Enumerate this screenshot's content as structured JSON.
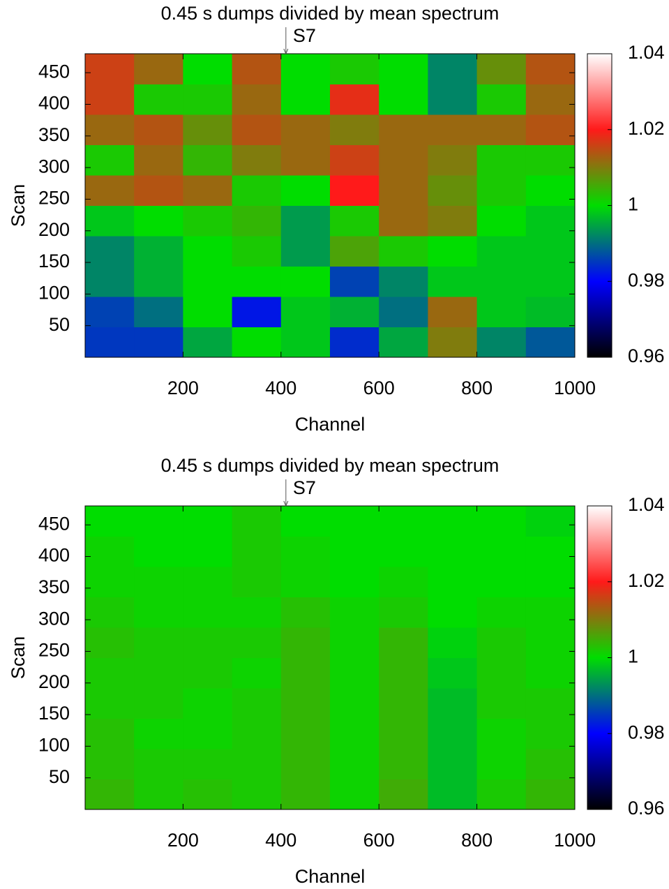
{
  "chart_data": [
    {
      "type": "heatmap",
      "title": "0.45 s dumps divided by mean spectrum",
      "annotation": {
        "text": "S7",
        "x": 410
      },
      "xlabel": "Channel",
      "ylabel": "Scan",
      "xlim": [
        0,
        1000
      ],
      "xticks": [
        200,
        400,
        600,
        800,
        1000
      ],
      "ylim": [
        0,
        480
      ],
      "yticks": [
        50,
        100,
        150,
        200,
        250,
        300,
        350,
        400,
        450
      ],
      "zlim": [
        0.96,
        1.04
      ],
      "zticks": [
        0.96,
        0.98,
        1,
        1.02,
        1.04
      ],
      "colormap": [
        "#000000",
        "#0000ff",
        "#00dd00",
        "#ff1a1a",
        "#ffffff"
      ],
      "x": [
        50,
        150,
        250,
        350,
        450,
        550,
        650,
        750,
        850,
        950
      ],
      "y": [
        24,
        72,
        120,
        168,
        216,
        264,
        312,
        360,
        408,
        456
      ],
      "z": [
        [
          0.985,
          0.985,
          0.995,
          1.0,
          0.998,
          0.984,
          0.995,
          1.01,
          0.992,
          0.988
        ],
        [
          0.986,
          0.99,
          1.0,
          0.982,
          0.998,
          0.996,
          0.99,
          1.012,
          0.998,
          0.997
        ],
        [
          0.992,
          0.996,
          1.0,
          1.0,
          1.0,
          0.986,
          0.992,
          0.998,
          0.998,
          0.998
        ],
        [
          0.992,
          0.996,
          1.0,
          1.002,
          0.994,
          1.006,
          1.002,
          1.0,
          0.998,
          0.998
        ],
        [
          0.998,
          1.0,
          1.002,
          1.004,
          0.994,
          1.002,
          1.012,
          1.01,
          1.0,
          0.998
        ],
        [
          1.012,
          1.014,
          1.012,
          1.002,
          1.0,
          1.02,
          1.012,
          1.008,
          1.002,
          1.0
        ],
        [
          1.002,
          1.012,
          1.004,
          1.01,
          1.012,
          1.016,
          1.012,
          1.01,
          1.002,
          1.002
        ],
        [
          1.012,
          1.014,
          1.008,
          1.014,
          1.012,
          1.01,
          1.012,
          1.012,
          1.012,
          1.014
        ],
        [
          1.016,
          1.002,
          1.002,
          1.012,
          1.0,
          1.018,
          1.0,
          0.992,
          1.002,
          1.012
        ],
        [
          1.016,
          1.012,
          1.0,
          1.014,
          1.0,
          1.002,
          1.0,
          0.992,
          1.008,
          1.014
        ]
      ]
    },
    {
      "type": "heatmap",
      "title": "0.45 s dumps divided by mean spectrum",
      "annotation": {
        "text": "S7",
        "x": 410
      },
      "xlabel": "Channel",
      "ylabel": "Scan",
      "xlim": [
        0,
        1000
      ],
      "xticks": [
        200,
        400,
        600,
        800,
        1000
      ],
      "ylim": [
        0,
        480
      ],
      "yticks": [
        50,
        100,
        150,
        200,
        250,
        300,
        350,
        400,
        450
      ],
      "zlim": [
        0.96,
        1.04
      ],
      "zticks": [
        0.96,
        0.98,
        1,
        1.02,
        1.04
      ],
      "colormap": [
        "#000000",
        "#0000ff",
        "#00dd00",
        "#ff1a1a",
        "#ffffff"
      ],
      "x": [
        50,
        150,
        250,
        350,
        450,
        550,
        650,
        750,
        850,
        950
      ],
      "y": [
        24,
        72,
        120,
        168,
        216,
        264,
        312,
        360,
        408,
        456
      ],
      "z": [
        [
          1.004,
          1.002,
          1.003,
          1.002,
          1.004,
          1.001,
          1.005,
          0.997,
          1.002,
          1.004
        ],
        [
          1.003,
          1.002,
          1.002,
          1.002,
          1.004,
          1.001,
          1.004,
          0.997,
          1.001,
          1.003
        ],
        [
          1.003,
          1.001,
          1.001,
          1.002,
          1.004,
          1.001,
          1.004,
          0.997,
          1.001,
          1.002
        ],
        [
          1.002,
          1.002,
          1.001,
          1.002,
          1.004,
          1.001,
          1.004,
          0.997,
          1.002,
          1.002
        ],
        [
          1.002,
          1.002,
          1.002,
          1.001,
          1.004,
          1.001,
          1.004,
          0.998,
          1.002,
          1.001
        ],
        [
          1.003,
          1.002,
          1.002,
          1.002,
          1.004,
          1.001,
          1.004,
          0.999,
          1.002,
          1.001
        ],
        [
          1.002,
          1.001,
          1.001,
          1.001,
          1.003,
          1.001,
          1.002,
          1.0,
          1.001,
          1.001
        ],
        [
          1.001,
          1.001,
          1.001,
          1.002,
          1.001,
          1.0,
          1.001,
          1.0,
          1.0,
          1.0
        ],
        [
          1.001,
          1.0,
          1.0,
          1.002,
          1.001,
          1.0,
          1.0,
          1.0,
          1.0,
          1.0
        ],
        [
          1.0,
          1.0,
          1.0,
          1.002,
          1.0,
          1.0,
          1.0,
          1.0,
          1.0,
          0.999
        ]
      ]
    }
  ]
}
